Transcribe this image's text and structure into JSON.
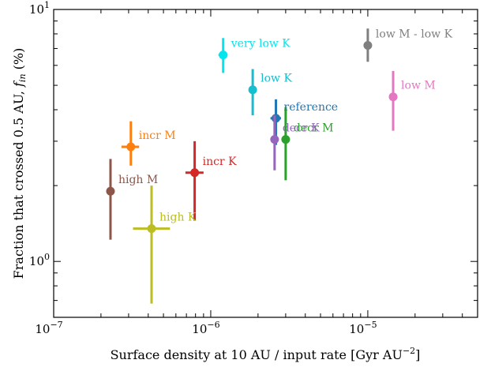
{
  "chart_data": {
    "type": "scatter",
    "xscale": "log",
    "yscale": "log",
    "xlim": [
      1e-07,
      5e-05
    ],
    "ylim": [
      0.6,
      10
    ],
    "xlabel": "Surface density at 10 AU / input rate [Gyr AU",
    "xlabel_sup": "−2",
    "xlabel_end": "]",
    "ylabel_pre": "Fraction that crossed 0.5 AU, ",
    "ylabel_f": "f",
    "ylabel_sub": "in",
    "ylabel_post": " (%)",
    "x_ticks": [
      {
        "value": 1e-07,
        "base": "10",
        "exp": "−7"
      },
      {
        "value": 1e-06,
        "base": "10",
        "exp": "−6"
      },
      {
        "value": 1e-05,
        "base": "10",
        "exp": "−5"
      }
    ],
    "y_ticks": [
      {
        "value": 1,
        "base": "10",
        "exp": "0"
      },
      {
        "value": 10,
        "base": "10",
        "exp": "1"
      }
    ],
    "grid": false,
    "points": [
      {
        "label": "very low K",
        "x": 1.2e-06,
        "y": 6.6,
        "xerr": [
          1.12e-06,
          1.28e-06
        ],
        "yerr": [
          5.6,
          7.7
        ],
        "color": "#00e5ee"
      },
      {
        "label": "low M - low K",
        "x": 1e-05,
        "y": 7.2,
        "xerr": [
          1e-05,
          1e-05
        ],
        "yerr": [
          6.2,
          8.4
        ],
        "color": "#7f7f7f"
      },
      {
        "label": "low K",
        "x": 1.85e-06,
        "y": 4.8,
        "xerr": [
          1.85e-06,
          1.85e-06
        ],
        "yerr": [
          3.8,
          5.8
        ],
        "color": "#17becf"
      },
      {
        "label": "low M",
        "x": 1.45e-05,
        "y": 4.5,
        "xerr": [
          1.45e-05,
          1.45e-05
        ],
        "yerr": [
          3.3,
          5.7
        ],
        "color": "#e377c2"
      },
      {
        "label": "reference",
        "x": 2.6e-06,
        "y": 3.7,
        "xerr": [
          2.4e-06,
          2.8e-06
        ],
        "yerr": [
          2.9,
          4.4
        ],
        "color": "#1f77b4"
      },
      {
        "label": "decr M",
        "x": 3e-06,
        "y": 3.05,
        "xerr": [
          3e-06,
          3e-06
        ],
        "yerr": [
          2.1,
          4.1
        ],
        "color": "#2ca02c"
      },
      {
        "label": "decr K",
        "x": 2.55e-06,
        "y": 3.05,
        "xerr": [
          2.55e-06,
          2.55e-06
        ],
        "yerr": [
          2.3,
          3.8
        ],
        "color": "#9467bd"
      },
      {
        "label": "incr M",
        "x": 3.1e-07,
        "y": 2.85,
        "xerr": [
          2.7e-07,
          3.5e-07
        ],
        "yerr": [
          2.4,
          3.6
        ],
        "color": "#ff7f0e"
      },
      {
        "label": "incr K",
        "x": 7.9e-07,
        "y": 2.25,
        "xerr": [
          6.9e-07,
          9e-07
        ],
        "yerr": [
          1.45,
          3.0
        ],
        "color": "#d62728"
      },
      {
        "label": "high M",
        "x": 2.3e-07,
        "y": 1.9,
        "xerr": [
          2.3e-07,
          2.3e-07
        ],
        "yerr": [
          1.22,
          2.55
        ],
        "color": "#8c564b"
      },
      {
        "label": "high K",
        "x": 4.2e-07,
        "y": 1.35,
        "xerr": [
          3.2e-07,
          5.5e-07
        ],
        "yerr": [
          0.68,
          2.0
        ],
        "color": "#bcbd22"
      }
    ]
  }
}
